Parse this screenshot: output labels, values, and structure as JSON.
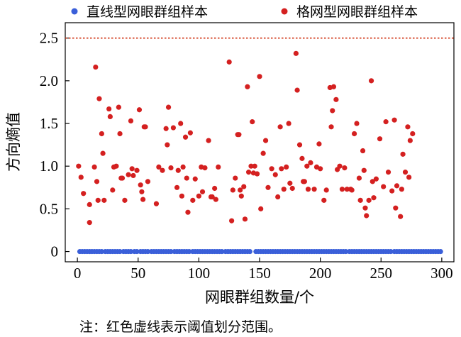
{
  "chart_data": {
    "type": "scatter",
    "title": "",
    "xlabel": "网眼群组数量/个",
    "ylabel": "方向熵值",
    "xlim": [
      -10,
      310
    ],
    "ylim": [
      -0.12,
      2.68
    ],
    "xticks": [
      0,
      50,
      100,
      150,
      200,
      250,
      300
    ],
    "yticks": [
      0,
      0.5,
      1.0,
      1.5,
      2.0,
      2.5
    ],
    "xtick_labels": [
      "0",
      "50",
      "100",
      "150",
      "200",
      "250",
      "300"
    ],
    "ytick_labels": [
      "0",
      "0.5",
      "1.0",
      "1.5",
      "2.0",
      "2.5"
    ],
    "threshold": {
      "value": 2.5,
      "color": "#d03010",
      "style": "dotted"
    },
    "legend": {
      "placement": "top"
    },
    "series": [
      {
        "name": "直线型网眼群组样本",
        "color": "#3a5fd9",
        "points": [
          [
            2,
            0
          ],
          [
            4,
            0
          ],
          [
            6,
            0
          ],
          [
            8,
            0
          ],
          [
            10,
            0
          ],
          [
            12,
            0
          ],
          [
            14,
            0
          ],
          [
            16,
            0
          ],
          [
            18,
            0
          ],
          [
            20,
            0
          ],
          [
            23,
            0
          ],
          [
            25,
            0
          ],
          [
            27,
            0
          ],
          [
            29,
            0
          ],
          [
            31,
            0
          ],
          [
            33,
            0
          ],
          [
            35,
            0
          ],
          [
            38,
            0
          ],
          [
            40,
            0
          ],
          [
            42,
            0
          ],
          [
            44,
            0
          ],
          [
            47,
            0
          ],
          [
            49,
            0
          ],
          [
            52,
            0
          ],
          [
            54,
            0
          ],
          [
            56,
            0
          ],
          [
            58,
            0
          ],
          [
            61,
            0
          ],
          [
            63,
            0
          ],
          [
            65,
            0
          ],
          [
            67,
            0
          ],
          [
            69,
            0
          ],
          [
            71,
            0
          ],
          [
            73,
            0
          ],
          [
            75,
            0
          ],
          [
            77,
            0
          ],
          [
            80,
            0
          ],
          [
            82,
            0
          ],
          [
            84,
            0
          ],
          [
            86,
            0
          ],
          [
            88,
            0
          ],
          [
            90,
            0
          ],
          [
            92,
            0
          ],
          [
            95,
            0
          ],
          [
            97,
            0
          ],
          [
            99,
            0
          ],
          [
            101,
            0
          ],
          [
            103,
            0
          ],
          [
            105,
            0
          ],
          [
            107,
            0
          ],
          [
            109,
            0
          ],
          [
            111,
            0
          ],
          [
            113,
            0
          ],
          [
            115,
            0
          ],
          [
            117,
            0
          ],
          [
            119,
            0
          ],
          [
            122,
            0
          ],
          [
            124,
            0
          ],
          [
            126,
            0
          ],
          [
            128,
            0
          ],
          [
            130,
            0
          ],
          [
            132,
            0
          ],
          [
            134,
            0
          ],
          [
            136,
            0
          ],
          [
            138,
            0
          ],
          [
            140,
            0
          ],
          [
            142,
            0
          ],
          [
            147,
            0
          ],
          [
            149,
            0
          ],
          [
            151,
            0
          ],
          [
            153,
            0
          ],
          [
            155,
            0
          ],
          [
            157,
            0
          ],
          [
            159,
            0
          ],
          [
            161,
            0
          ],
          [
            163,
            0
          ],
          [
            165,
            0
          ],
          [
            167,
            0
          ],
          [
            169,
            0
          ],
          [
            171,
            0
          ],
          [
            173,
            0
          ],
          [
            175,
            0
          ],
          [
            177,
            0
          ],
          [
            179,
            0
          ],
          [
            181,
            0
          ],
          [
            183,
            0
          ],
          [
            185,
            0
          ],
          [
            187,
            0
          ],
          [
            189,
            0
          ],
          [
            191,
            0
          ],
          [
            193,
            0
          ],
          [
            195,
            0
          ],
          [
            197,
            0
          ],
          [
            199,
            0
          ],
          [
            201,
            0
          ],
          [
            203,
            0
          ],
          [
            205,
            0
          ],
          [
            207,
            0
          ],
          [
            209,
            0
          ],
          [
            211,
            0
          ],
          [
            213,
            0
          ],
          [
            215,
            0
          ],
          [
            217,
            0
          ],
          [
            219,
            0
          ],
          [
            221,
            0
          ],
          [
            224,
            0
          ],
          [
            226,
            0
          ],
          [
            228,
            0
          ],
          [
            230,
            0
          ],
          [
            232,
            0
          ],
          [
            234,
            0
          ],
          [
            236,
            0
          ],
          [
            238,
            0
          ],
          [
            240,
            0
          ],
          [
            242,
            0
          ],
          [
            244,
            0
          ],
          [
            246,
            0
          ],
          [
            248,
            0
          ],
          [
            250,
            0
          ],
          [
            252,
            0
          ],
          [
            254,
            0
          ],
          [
            256,
            0
          ],
          [
            258,
            0
          ],
          [
            261,
            0
          ],
          [
            263,
            0
          ],
          [
            265,
            0
          ],
          [
            267,
            0
          ],
          [
            269,
            0
          ],
          [
            271,
            0
          ],
          [
            273,
            0
          ],
          [
            275,
            0
          ],
          [
            277,
            0
          ],
          [
            279,
            0
          ],
          [
            281,
            0
          ],
          [
            283,
            0
          ],
          [
            285,
            0
          ],
          [
            287,
            0
          ],
          [
            289,
            0
          ],
          [
            291,
            0
          ],
          [
            293,
            0
          ],
          [
            295,
            0
          ],
          [
            297,
            0
          ],
          [
            299,
            0
          ]
        ]
      },
      {
        "name": "格网型网眼群组样本",
        "color": "#d42020",
        "points": [
          [
            1,
            1.0
          ],
          [
            3,
            0.87
          ],
          [
            5,
            0.68
          ],
          [
            10,
            0.55
          ],
          [
            10,
            0.34
          ],
          [
            14,
            0.99
          ],
          [
            15,
            2.16
          ],
          [
            16,
            0.82
          ],
          [
            17,
            0.6
          ],
          [
            18,
            1.79
          ],
          [
            20,
            1.38
          ],
          [
            21,
            1.15
          ],
          [
            22,
            0.6
          ],
          [
            26,
            1.67
          ],
          [
            27,
            1.58
          ],
          [
            29,
            0.72
          ],
          [
            30,
            0.99
          ],
          [
            32,
            1.0
          ],
          [
            34,
            1.69
          ],
          [
            35,
            1.38
          ],
          [
            36,
            0.86
          ],
          [
            37,
            0.86
          ],
          [
            39,
            0.6
          ],
          [
            42,
            0.9
          ],
          [
            44,
            1.53
          ],
          [
            45,
            0.97
          ],
          [
            46,
            0.89
          ],
          [
            49,
            0.95
          ],
          [
            51,
            1.66
          ],
          [
            52,
            0.78
          ],
          [
            53,
            0.7
          ],
          [
            54,
            0.61
          ],
          [
            55,
            1.46
          ],
          [
            56,
            1.46
          ],
          [
            58,
            0.82
          ],
          [
            65,
            0.56
          ],
          [
            67,
            0.99
          ],
          [
            70,
            0.95
          ],
          [
            73,
            1.44
          ],
          [
            74,
            1.25
          ],
          [
            75,
            1.69
          ],
          [
            77,
            0.98
          ],
          [
            79,
            1.45
          ],
          [
            82,
            0.75
          ],
          [
            83,
            0.95
          ],
          [
            85,
            1.5
          ],
          [
            86,
            0.65
          ],
          [
            87,
            0.99
          ],
          [
            89,
            1.34
          ],
          [
            90,
            0.86
          ],
          [
            91,
            0.46
          ],
          [
            93,
            1.39
          ],
          [
            95,
            0.6
          ],
          [
            97,
            0.85
          ],
          [
            100,
            0.65
          ],
          [
            102,
            0.99
          ],
          [
            103,
            0.7
          ],
          [
            105,
            0.98
          ],
          [
            108,
            1.3
          ],
          [
            110,
            0.64
          ],
          [
            111,
            0.64
          ],
          [
            113,
            0.74
          ],
          [
            114,
            0.61
          ],
          [
            116,
            0.99
          ],
          [
            125,
            2.22
          ],
          [
            127,
            0.36
          ],
          [
            128,
            0.72
          ],
          [
            130,
            0.86
          ],
          [
            132,
            1.37
          ],
          [
            133,
            1.37
          ],
          [
            134,
            0.72
          ],
          [
            135,
            0.65
          ],
          [
            137,
            0.76
          ],
          [
            138,
            0.38
          ],
          [
            140,
            1.93
          ],
          [
            141,
            0.93
          ],
          [
            143,
            1.0
          ],
          [
            144,
            1.52
          ],
          [
            145,
            0.92
          ],
          [
            146,
            1.0
          ],
          [
            148,
            0.91
          ],
          [
            150,
            2.05
          ],
          [
            151,
            0.5
          ],
          [
            153,
            1.15
          ],
          [
            155,
            1.3
          ],
          [
            157,
            0.75
          ],
          [
            160,
            0.97
          ],
          [
            163,
            0.9
          ],
          [
            165,
            0.64
          ],
          [
            167,
            1.46
          ],
          [
            168,
            0.97
          ],
          [
            170,
            0.73
          ],
          [
            172,
            0.99
          ],
          [
            174,
            1.5
          ],
          [
            175,
            0.8
          ],
          [
            177,
            0.74
          ],
          [
            180,
            2.32
          ],
          [
            181,
            1.89
          ],
          [
            183,
            1.25
          ],
          [
            185,
            1.09
          ],
          [
            186,
            0.82
          ],
          [
            187,
            0.82
          ],
          [
            189,
            1.0
          ],
          [
            190,
            0.73
          ],
          [
            192,
            1.04
          ],
          [
            195,
            0.73
          ],
          [
            197,
            0.99
          ],
          [
            199,
            1.26
          ],
          [
            200,
            0.97
          ],
          [
            203,
            0.6
          ],
          [
            205,
            0.72
          ],
          [
            208,
            1.92
          ],
          [
            209,
            1.46
          ],
          [
            210,
            1.65
          ],
          [
            211,
            1.93
          ],
          [
            213,
            1.78
          ],
          [
            214,
            0.96
          ],
          [
            216,
            1.0
          ],
          [
            218,
            0.73
          ],
          [
            220,
            0.98
          ],
          [
            222,
            0.73
          ],
          [
            225,
            0.73
          ],
          [
            226,
            0.72
          ],
          [
            228,
            1.38
          ],
          [
            230,
            1.5
          ],
          [
            232,
            0.86
          ],
          [
            233,
            0.6
          ],
          [
            235,
            1.18
          ],
          [
            236,
            0.95
          ],
          [
            237,
            0.51
          ],
          [
            238,
            0.42
          ],
          [
            240,
            0.6
          ],
          [
            242,
            2.0
          ],
          [
            243,
            0.82
          ],
          [
            244,
            0.63
          ],
          [
            246,
            0.85
          ],
          [
            249,
            1.32
          ],
          [
            252,
            0.76
          ],
          [
            254,
            1.52
          ],
          [
            256,
            0.93
          ],
          [
            259,
            0.71
          ],
          [
            261,
            1.54
          ],
          [
            262,
            0.51
          ],
          [
            263,
            0.77
          ],
          [
            266,
            0.41
          ],
          [
            267,
            0.73
          ],
          [
            268,
            1.14
          ],
          [
            270,
            0.93
          ],
          [
            272,
            1.46
          ],
          [
            273,
            0.87
          ],
          [
            274,
            1.3
          ],
          [
            276,
            1.38
          ]
        ]
      }
    ]
  },
  "note": "注：红色虚线表示阈值划分范围。"
}
